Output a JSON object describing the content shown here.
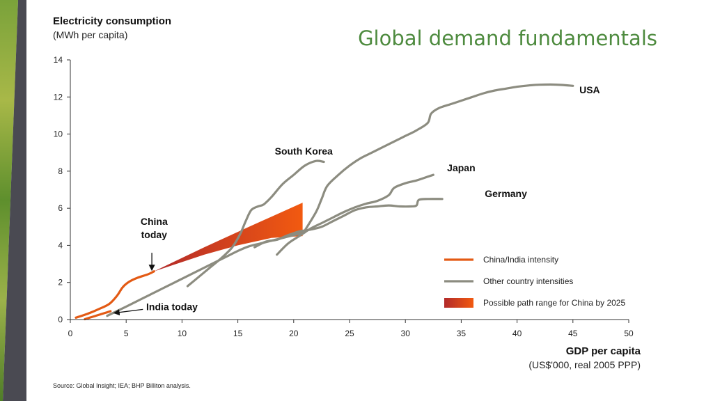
{
  "slide": {
    "title": "Global demand fundamentals",
    "source": "Source:  Global Insight; IEA; BHP Billiton analysis."
  },
  "colors": {
    "title": "#4e8b3f",
    "china_india": "#e35a14",
    "other": "#8c8c80",
    "band_start": "#b22a2a",
    "band_end": "#f25a10"
  },
  "chart_data": {
    "type": "line",
    "ylabel": "Electricity consumption",
    "ylabel_unit": "(MWh per capita)",
    "xlabel": "GDP per capita",
    "xlabel_unit": "(US$'000, real 2005 PPP)",
    "xlim": [
      0,
      50
    ],
    "ylim": [
      0,
      14
    ],
    "x_ticks": [
      0,
      5,
      10,
      15,
      20,
      25,
      30,
      35,
      40,
      45,
      50
    ],
    "y_ticks": [
      0,
      2,
      4,
      6,
      8,
      10,
      12,
      14
    ],
    "grid": false,
    "legend_position": "bottom-right",
    "legend": [
      {
        "label": "China/India intensity",
        "kind": "line",
        "color": "#e35a14"
      },
      {
        "label": "Other country intensities",
        "kind": "line",
        "color": "#8c8c80"
      },
      {
        "label": "Possible path range for China by 2025",
        "kind": "band",
        "color": "#d84018"
      }
    ],
    "series": [
      {
        "name": "USA",
        "group": "other",
        "points": [
          [
            21,
            4.8
          ],
          [
            22,
            5.8
          ],
          [
            22.5,
            6.5
          ],
          [
            23,
            7.2
          ],
          [
            24,
            7.8
          ],
          [
            25,
            8.3
          ],
          [
            26,
            8.7
          ],
          [
            27,
            9.0
          ],
          [
            28,
            9.3
          ],
          [
            29,
            9.6
          ],
          [
            30,
            9.9
          ],
          [
            31,
            10.2
          ],
          [
            32,
            10.6
          ],
          [
            32.3,
            11.1
          ],
          [
            33,
            11.4
          ],
          [
            34,
            11.6
          ],
          [
            35,
            11.8
          ],
          [
            36,
            12.0
          ],
          [
            37,
            12.2
          ],
          [
            38,
            12.35
          ],
          [
            39,
            12.45
          ],
          [
            40,
            12.55
          ],
          [
            41,
            12.62
          ],
          [
            42,
            12.66
          ],
          [
            43,
            12.67
          ],
          [
            44,
            12.65
          ],
          [
            45,
            12.6
          ]
        ],
        "label": "USA",
        "label_at": [
          46.5,
          12.2
        ]
      },
      {
        "name": "South Korea",
        "group": "other",
        "points": [
          [
            10.5,
            1.8
          ],
          [
            11.5,
            2.3
          ],
          [
            12.5,
            2.8
          ],
          [
            13.5,
            3.3
          ],
          [
            14.5,
            3.9
          ],
          [
            15.2,
            4.6
          ],
          [
            15.7,
            5.3
          ],
          [
            16.2,
            5.9
          ],
          [
            16.8,
            6.1
          ],
          [
            17.3,
            6.2
          ],
          [
            18,
            6.6
          ],
          [
            19,
            7.3
          ],
          [
            20,
            7.8
          ],
          [
            21,
            8.3
          ],
          [
            22,
            8.55
          ],
          [
            22.7,
            8.5
          ]
        ],
        "label": "South Korea",
        "label_at": [
          20.9,
          8.9
        ]
      },
      {
        "name": "Japan",
        "group": "other",
        "points": [
          [
            18.5,
            3.5
          ],
          [
            19.5,
            4.1
          ],
          [
            20.5,
            4.5
          ],
          [
            21.5,
            4.9
          ],
          [
            22.5,
            5.2
          ],
          [
            23.5,
            5.5
          ],
          [
            24.5,
            5.8
          ],
          [
            25.5,
            6.05
          ],
          [
            26.5,
            6.25
          ],
          [
            27.5,
            6.4
          ],
          [
            28.5,
            6.7
          ],
          [
            29,
            7.1
          ],
          [
            30,
            7.35
          ],
          [
            31,
            7.5
          ],
          [
            32,
            7.7
          ],
          [
            32.5,
            7.8
          ]
        ],
        "label": "Japan",
        "label_at": [
          35.0,
          8.0
        ]
      },
      {
        "name": "Germany",
        "group": "other",
        "points": [
          [
            16.5,
            3.9
          ],
          [
            17.5,
            4.2
          ],
          [
            18.5,
            4.3
          ],
          [
            19.5,
            4.55
          ],
          [
            20.5,
            4.75
          ],
          [
            21.5,
            4.85
          ],
          [
            22.5,
            5.0
          ],
          [
            23.5,
            5.3
          ],
          [
            24.5,
            5.6
          ],
          [
            25.5,
            5.9
          ],
          [
            26.5,
            6.05
          ],
          [
            27.5,
            6.1
          ],
          [
            28.5,
            6.15
          ],
          [
            29.5,
            6.1
          ],
          [
            30.5,
            6.1
          ],
          [
            31,
            6.15
          ],
          [
            31.2,
            6.45
          ],
          [
            32,
            6.5
          ],
          [
            33.3,
            6.5
          ]
        ],
        "label": "Germany",
        "label_at": [
          39.0,
          6.6
        ]
      },
      {
        "name": "Other country intensity",
        "group": "other",
        "points": [
          [
            3.3,
            0.2
          ],
          [
            5,
            0.7
          ],
          [
            6,
            1.0
          ],
          [
            7,
            1.3
          ],
          [
            8,
            1.6
          ],
          [
            9,
            1.9
          ],
          [
            10,
            2.2
          ],
          [
            11,
            2.5
          ],
          [
            12,
            2.8
          ],
          [
            13,
            3.1
          ],
          [
            14,
            3.4
          ],
          [
            15,
            3.7
          ],
          [
            16,
            3.95
          ],
          [
            17,
            4.1
          ],
          [
            18,
            4.25
          ],
          [
            19,
            4.4
          ],
          [
            20,
            4.55
          ],
          [
            21,
            4.7
          ]
        ]
      },
      {
        "name": "China",
        "group": "china_india",
        "points": [
          [
            0.5,
            0.1
          ],
          [
            1.5,
            0.3
          ],
          [
            2.5,
            0.55
          ],
          [
            3.5,
            0.85
          ],
          [
            4.2,
            1.3
          ],
          [
            4.7,
            1.75
          ],
          [
            5.3,
            2.05
          ],
          [
            6,
            2.25
          ],
          [
            7,
            2.45
          ],
          [
            7.5,
            2.6
          ]
        ],
        "label": "China\ntoday",
        "label_at": [
          7.5,
          5.1
        ]
      },
      {
        "name": "India",
        "group": "china_india",
        "points": [
          [
            1.3,
            0.02
          ],
          [
            2,
            0.15
          ],
          [
            2.8,
            0.3
          ],
          [
            3.6,
            0.45
          ]
        ],
        "label": "India today",
        "label_at": [
          9.1,
          0.5
        ]
      }
    ],
    "band": {
      "label": "Possible path range for China by 2025",
      "start": [
        7.5,
        2.6
      ],
      "x_end": 20.8,
      "upper": [
        [
          7.5,
          2.6
        ],
        [
          12,
          3.9
        ],
        [
          16,
          5.0
        ],
        [
          20.8,
          6.3
        ]
      ],
      "lower": [
        [
          20.8,
          4.5
        ],
        [
          18,
          4.4
        ],
        [
          15,
          4.0
        ],
        [
          12,
          3.5
        ],
        [
          7.5,
          2.6
        ]
      ]
    },
    "arrows": [
      {
        "name": "china-arrow",
        "from": [
          7.3,
          3.6
        ],
        "to": [
          7.3,
          2.65
        ]
      },
      {
        "name": "india-arrow",
        "from": [
          6.5,
          0.55
        ],
        "to": [
          3.9,
          0.35
        ]
      }
    ]
  }
}
